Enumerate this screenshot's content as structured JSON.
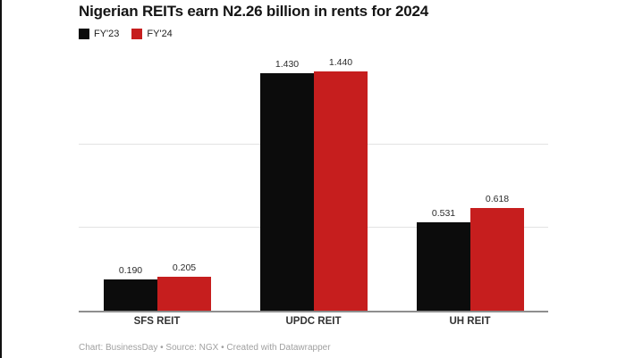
{
  "title": "Nigerian REITs earn N2.26 billion in rents for 2024",
  "legend": {
    "items": [
      {
        "label": "FY'23",
        "color": "#0c0c0c"
      },
      {
        "label": "FY'24",
        "color": "#c61e1e"
      }
    ]
  },
  "chart_data": {
    "type": "bar",
    "title": "Nigerian REITs earn N2.26 billion in rents for 2024",
    "categories": [
      "SFS REIT",
      "UPDC REIT",
      "UH REIT"
    ],
    "series": [
      {
        "name": "FY'23",
        "color": "#0c0c0c",
        "values": [
          0.19,
          1.43,
          0.531
        ],
        "labels": [
          "0.190",
          "1.430",
          "0.531"
        ]
      },
      {
        "name": "FY'24",
        "color": "#c61e1e",
        "values": [
          0.205,
          1.44,
          0.618
        ],
        "labels": [
          "0.205",
          "1.440",
          "0.618"
        ]
      }
    ],
    "xlabel": "",
    "ylabel": "",
    "ylim": [
      0,
      1.56
    ],
    "grid": "horizontal",
    "gridline_values": [
      0.5,
      1.0
    ],
    "legend_position": "top-left"
  },
  "footer": "Chart: BusinessDay • Source: NGX • Created with Datawrapper",
  "colors": {
    "bar_fy23": "#0c0c0c",
    "bar_fy24": "#c61e1e",
    "axis": "#8e8e8e",
    "gridline": "#e3e3e3",
    "background": "#ffffff"
  }
}
